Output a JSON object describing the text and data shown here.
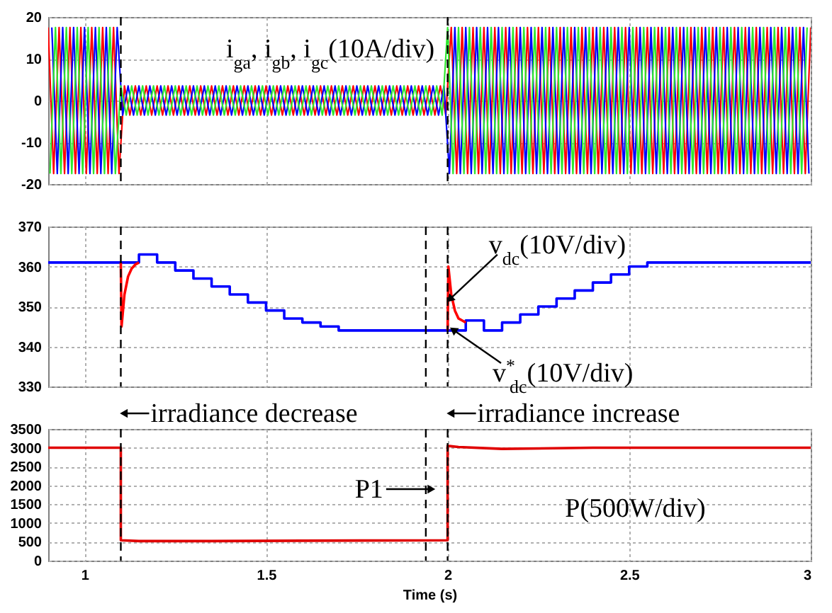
{
  "chart_data": [
    {
      "type": "line",
      "xlim": [
        0.9,
        3
      ],
      "xticks": [
        1,
        1.5,
        2,
        2.5,
        3
      ],
      "ylim": [
        -20,
        20
      ],
      "yticks": [
        -20,
        -10,
        0,
        10,
        20
      ],
      "grid": true,
      "tick_labels": "y",
      "annotations": [
        "i$_{ga}$, i$_{gb}$, i$_{gc}$(10A/div)"
      ],
      "ref_lines": [
        {
          "axis": "x",
          "value": 1.1,
          "line_style": "dashed"
        },
        {
          "axis": "x",
          "value": 2.0,
          "line_style": "dashed"
        }
      ],
      "series": [
        {
          "color": "#ff0000",
          "x": [
            0.9,
            0.915,
            0.93,
            0.945,
            0.96,
            0.975,
            0.99,
            1.005,
            1.02,
            1.035,
            1.05,
            1.065,
            1.08,
            1.095,
            1.11,
            1.125,
            1.14,
            1.155,
            1.17,
            1.185,
            1.2,
            1.215,
            1.23,
            1.245,
            1.26,
            1.275,
            1.29,
            1.305,
            1.32,
            1.335,
            1.35,
            1.365,
            1.38,
            1.395,
            1.41,
            1.425,
            1.44,
            1.455,
            1.47,
            1.485,
            1.5,
            1.515,
            1.53,
            1.545,
            1.56,
            1.575,
            1.59,
            1.605,
            1.62,
            1.635,
            1.65,
            1.665,
            1.68,
            1.695,
            1.71,
            1.725,
            1.74,
            1.755,
            1.77,
            1.785,
            1.8,
            1.815,
            1.83,
            1.845,
            1.86,
            1.875,
            1.89,
            1.905,
            1.92,
            1.935,
            1.95,
            1.965,
            1.98,
            1.995,
            2.01,
            2.025,
            2.04,
            2.055,
            2.07,
            2.085,
            2.1,
            2.115,
            2.13,
            2.145,
            2.16,
            2.175,
            2.19,
            2.205,
            2.22,
            2.235,
            2.25,
            2.265,
            2.28,
            2.295,
            2.31,
            2.325,
            2.34,
            2.355,
            2.37,
            2.385,
            2.4,
            2.415,
            2.43,
            2.445,
            2.46,
            2.475,
            2.49,
            2.505,
            2.52,
            2.535,
            2.55,
            2.565,
            2.58,
            2.595,
            2.61,
            2.625,
            2.64,
            2.655,
            2.67,
            2.685,
            2.7,
            2.715,
            2.73,
            2.745,
            2.76,
            2.775,
            2.79,
            2.805,
            2.82,
            2.835,
            2.85,
            2.865,
            2.88,
            2.895,
            2.91,
            2.925,
            2.94,
            2.955,
            2.97,
            2.985,
            3.0
          ],
          "values": [
            17.5,
            -17.5,
            17.5,
            -17.5,
            17.5,
            -17.5,
            17.5,
            -17.5,
            17.5,
            -17.5,
            17.5,
            -17.5,
            17.5,
            -17.5,
            3.5,
            -3.5,
            3.5,
            -3.5,
            3.5,
            -3.5,
            3.5,
            -3.5,
            3.5,
            -3.5,
            3.5,
            -3.5,
            3.5,
            -3.5,
            3.5,
            -3.5,
            3.5,
            -3.5,
            3.5,
            -3.5,
            3.5,
            -3.5,
            3.5,
            -3.5,
            3.5,
            -3.5,
            3.5,
            -3.5,
            3.5,
            -3.5,
            3.5,
            -3.5,
            3.5,
            -3.5,
            3.5,
            -3.5,
            3.5,
            -3.5,
            3.5,
            -3.5,
            3.5,
            -3.5,
            3.5,
            -3.5,
            3.5,
            -3.5,
            3.5,
            -3.5,
            3.5,
            -3.5,
            3.5,
            -3.5,
            3.5,
            -3.5,
            3.5,
            -3.5,
            3.5,
            -3.5,
            3.5,
            -3.5,
            17.5,
            -17.5,
            17.5,
            -17.5,
            17.5,
            -17.5,
            17.5,
            -17.5,
            17.5,
            -17.5,
            17.5,
            -17.5,
            17.5,
            -17.5,
            17.5,
            -17.5,
            17.5,
            -17.5,
            17.5,
            -17.5,
            17.5,
            -17.5,
            17.5,
            -17.5,
            17.5,
            -17.5,
            17.5,
            -17.5,
            17.5,
            -17.5,
            17.5,
            -17.5,
            17.5,
            -17.5,
            17.5,
            -17.5,
            17.5,
            -17.5,
            17.5,
            -17.5,
            17.5,
            -17.5,
            17.5,
            -17.5,
            17.5,
            -17.5,
            17.5,
            -17.5,
            17.5,
            -17.5,
            17.5,
            -17.5,
            17.5,
            -17.5,
            17.5,
            -17.5,
            17.5,
            -17.5,
            17.5,
            -17.5,
            17.5,
            -17.5,
            17.5,
            -17.5,
            17.5,
            -17.5,
            17.5
          ]
        },
        {
          "color": "#0000ff",
          "x": [
            0.91,
            0.925,
            0.94,
            0.955,
            0.97,
            0.985,
            1.0,
            1.015,
            1.03,
            1.045,
            1.06,
            1.075,
            1.09,
            1.105,
            1.12,
            1.135,
            1.15,
            1.165,
            1.18,
            1.195,
            1.21,
            1.225,
            1.24,
            1.255,
            1.27,
            1.285,
            1.3,
            1.315,
            1.33,
            1.345,
            1.36,
            1.375,
            1.39,
            1.405,
            1.42,
            1.435,
            1.45,
            1.465,
            1.48,
            1.495,
            1.51,
            1.525,
            1.54,
            1.555,
            1.57,
            1.585,
            1.6,
            1.615,
            1.63,
            1.645,
            1.66,
            1.675,
            1.69,
            1.705,
            1.72,
            1.735,
            1.75,
            1.765,
            1.78,
            1.795,
            1.81,
            1.825,
            1.84,
            1.855,
            1.87,
            1.885,
            1.9,
            1.915,
            1.93,
            1.945,
            1.96,
            1.975,
            1.99,
            2.005,
            2.02,
            2.035,
            2.05,
            2.065,
            2.08,
            2.095,
            2.11,
            2.125,
            2.14,
            2.155,
            2.17,
            2.185,
            2.2,
            2.215,
            2.23,
            2.245,
            2.26,
            2.275,
            2.29,
            2.305,
            2.32,
            2.335,
            2.35,
            2.365,
            2.38,
            2.395,
            2.41,
            2.425,
            2.44,
            2.455,
            2.47,
            2.485,
            2.5,
            2.515,
            2.53,
            2.545,
            2.56,
            2.575,
            2.59,
            2.605,
            2.62,
            2.635,
            2.65,
            2.665,
            2.68,
            2.695,
            2.71,
            2.725,
            2.74,
            2.755,
            2.77,
            2.785,
            2.8,
            2.815,
            2.83,
            2.845,
            2.86,
            2.875,
            2.89,
            2.905,
            2.92,
            2.935,
            2.95,
            2.965,
            2.98,
            2.995
          ],
          "values": [
            17.5,
            -17.5,
            17.5,
            -17.5,
            17.5,
            -17.5,
            17.5,
            -17.5,
            17.5,
            -17.5,
            17.5,
            -17.5,
            17.5,
            -3.5,
            3.5,
            -3.5,
            3.5,
            -3.5,
            3.5,
            -3.5,
            3.5,
            -3.5,
            3.5,
            -3.5,
            3.5,
            -3.5,
            3.5,
            -3.5,
            3.5,
            -3.5,
            3.5,
            -3.5,
            3.5,
            -3.5,
            3.5,
            -3.5,
            3.5,
            -3.5,
            3.5,
            -3.5,
            3.5,
            -3.5,
            3.5,
            -3.5,
            3.5,
            -3.5,
            3.5,
            -3.5,
            3.5,
            -3.5,
            3.5,
            -3.5,
            3.5,
            -3.5,
            3.5,
            -3.5,
            3.5,
            -3.5,
            3.5,
            -3.5,
            3.5,
            -3.5,
            3.5,
            -3.5,
            3.5,
            -3.5,
            3.5,
            -3.5,
            3.5,
            -3.5,
            3.5,
            -3.5,
            3.5,
            -17.5,
            17.5,
            -17.5,
            17.5,
            -17.5,
            17.5,
            -17.5,
            17.5,
            -17.5,
            17.5,
            -17.5,
            17.5,
            -17.5,
            17.5,
            -17.5,
            17.5,
            -17.5,
            17.5,
            -17.5,
            17.5,
            -17.5,
            17.5,
            -17.5,
            17.5,
            -17.5,
            17.5,
            -17.5,
            17.5,
            -17.5,
            17.5,
            -17.5,
            17.5,
            -17.5,
            17.5,
            -17.5,
            17.5,
            -17.5,
            17.5,
            -17.5,
            17.5,
            -17.5,
            17.5,
            -17.5,
            17.5,
            -17.5,
            17.5,
            -17.5,
            17.5,
            -17.5,
            17.5,
            -17.5,
            17.5,
            -17.5,
            17.5,
            -17.5,
            17.5,
            -17.5,
            17.5,
            -17.5,
            17.5,
            -17.5,
            17.5,
            -17.5,
            17.5,
            -17.5,
            17.5,
            -17.5
          ]
        },
        {
          "color": "#2ee82e",
          "x": [
            0.905,
            0.92,
            0.935,
            0.95,
            0.965,
            0.98,
            0.995,
            1.01,
            1.025,
            1.04,
            1.055,
            1.07,
            1.085,
            1.1,
            1.115,
            1.13,
            1.145,
            1.16,
            1.175,
            1.19,
            1.205,
            1.22,
            1.235,
            1.25,
            1.265,
            1.28,
            1.295,
            1.31,
            1.325,
            1.34,
            1.355,
            1.37,
            1.385,
            1.4,
            1.415,
            1.43,
            1.445,
            1.46,
            1.475,
            1.49,
            1.505,
            1.52,
            1.535,
            1.55,
            1.565,
            1.58,
            1.595,
            1.61,
            1.625,
            1.64,
            1.655,
            1.67,
            1.685,
            1.7,
            1.715,
            1.73,
            1.745,
            1.76,
            1.775,
            1.79,
            1.805,
            1.82,
            1.835,
            1.85,
            1.865,
            1.88,
            1.895,
            1.91,
            1.925,
            1.94,
            1.955,
            1.97,
            1.985,
            2.0,
            2.015,
            2.03,
            2.045,
            2.06,
            2.075,
            2.09,
            2.105,
            2.12,
            2.135,
            2.15,
            2.165,
            2.18,
            2.195,
            2.21,
            2.225,
            2.24,
            2.255,
            2.27,
            2.285,
            2.3,
            2.315,
            2.33,
            2.345,
            2.36,
            2.375,
            2.39,
            2.405,
            2.42,
            2.435,
            2.45,
            2.465,
            2.48,
            2.495,
            2.51,
            2.525,
            2.54,
            2.555,
            2.57,
            2.585,
            2.6,
            2.615,
            2.63,
            2.645,
            2.66,
            2.675,
            2.69,
            2.705,
            2.72,
            2.735,
            2.75,
            2.765,
            2.78,
            2.795,
            2.81,
            2.825,
            2.84,
            2.855,
            2.87,
            2.885,
            2.9,
            2.915,
            2.93,
            2.945,
            2.96,
            2.975,
            2.99
          ],
          "values": [
            -17.5,
            17.5,
            -17.5,
            17.5,
            -17.5,
            17.5,
            -17.5,
            17.5,
            -17.5,
            17.5,
            -17.5,
            17.5,
            -17.5,
            3.5,
            -3.5,
            3.5,
            -3.5,
            3.5,
            -3.5,
            3.5,
            -3.5,
            3.5,
            -3.5,
            3.5,
            -3.5,
            3.5,
            -3.5,
            3.5,
            -3.5,
            3.5,
            -3.5,
            3.5,
            -3.5,
            3.5,
            -3.5,
            3.5,
            -3.5,
            3.5,
            -3.5,
            3.5,
            -3.5,
            3.5,
            -3.5,
            3.5,
            -3.5,
            3.5,
            -3.5,
            3.5,
            -3.5,
            3.5,
            -3.5,
            3.5,
            -3.5,
            3.5,
            -3.5,
            3.5,
            -3.5,
            3.5,
            -3.5,
            3.5,
            -3.5,
            3.5,
            -3.5,
            3.5,
            -3.5,
            3.5,
            -3.5,
            3.5,
            -3.5,
            3.5,
            -3.5,
            3.5,
            -3.5,
            17.5,
            -17.5,
            17.5,
            -17.5,
            17.5,
            -17.5,
            17.5,
            -17.5,
            17.5,
            -17.5,
            17.5,
            -17.5,
            17.5,
            -17.5,
            17.5,
            -17.5,
            17.5,
            -17.5,
            17.5,
            -17.5,
            17.5,
            -17.5,
            17.5,
            -17.5,
            17.5,
            -17.5,
            17.5,
            -17.5,
            17.5,
            -17.5,
            17.5,
            -17.5,
            17.5,
            -17.5,
            17.5,
            -17.5,
            17.5,
            -17.5,
            17.5,
            -17.5,
            17.5,
            -17.5,
            17.5,
            -17.5,
            17.5,
            -17.5,
            17.5,
            -17.5,
            17.5,
            -17.5,
            17.5,
            -17.5,
            17.5,
            -17.5,
            17.5,
            -17.5,
            17.5,
            -17.5,
            17.5,
            -17.5,
            17.5,
            -17.5,
            17.5,
            -17.5,
            17.5,
            -17.5,
            17.5
          ]
        }
      ]
    },
    {
      "type": "line",
      "xlim": [
        0.9,
        3
      ],
      "xticks": [
        1,
        1.5,
        2,
        2.5,
        3
      ],
      "ylim": [
        330,
        370
      ],
      "yticks": [
        330,
        340,
        350,
        360,
        370
      ],
      "grid": true,
      "tick_labels": "y",
      "annotations": [
        {
          "text": "v$_{dc}$(10V/div)",
          "x": 2.02,
          "y": 352
        },
        {
          "text": "v$^{*}$$_{dc}$(10V/div)",
          "x": 2.03,
          "y": 344
        }
      ],
      "ref_lines": [
        {
          "axis": "x",
          "value": 1.1,
          "line_style": "dashed"
        },
        {
          "axis": "x",
          "value": 2.0,
          "line_style": "dashed"
        },
        {
          "axis": "x",
          "value": 1.94,
          "line_style": "dashed"
        }
      ],
      "series": [
        {
          "type": "step",
          "color": "#0000ff",
          "x": [
            0.9,
            1.15,
            1.2,
            1.25,
            1.3,
            1.35,
            1.4,
            1.45,
            1.5,
            1.55,
            1.6,
            1.65,
            1.7,
            2.05,
            2.1,
            2.15,
            2.2,
            2.25,
            2.3,
            2.35,
            2.4,
            2.45,
            2.5,
            2.55,
            3
          ],
          "values": [
            361,
            363,
            361,
            359,
            357,
            355,
            353,
            351,
            349,
            347,
            346,
            345,
            344,
            346.5,
            344,
            346,
            348,
            350,
            352,
            354,
            356,
            358,
            360,
            361,
            361
          ]
        },
        {
          "color": "#ff0000",
          "x": [
            1.1,
            1.102,
            1.11,
            1.12,
            1.13,
            1.14,
            1.15,
            1.6,
            2.0,
            2.002,
            2.01,
            2.02,
            2.03,
            2.04,
            2.05
          ],
          "values": [
            361,
            345,
            353,
            357.5,
            359.5,
            360.5,
            361,
            null,
            344,
            360,
            353,
            349,
            347,
            346.5,
            346
          ]
        }
      ]
    },
    {
      "type": "line",
      "xlim": [
        0.9,
        3
      ],
      "xticks": [
        {
          "value": 1,
          "label": "1"
        },
        1.5,
        {
          "value": 2,
          "label": "2"
        },
        2.5,
        {
          "value": 3,
          "label": "3"
        }
      ],
      "ylim": [
        0,
        3500
      ],
      "yticks": [
        0,
        500,
        1000,
        1500,
        2000,
        2500,
        3000,
        3500
      ],
      "grid": true,
      "xlabel": "Time (s)",
      "annotations": [
        {
          "text": "P1",
          "x": 1.94,
          "y": 1900
        },
        "P(500W/div)"
      ],
      "ref_lines": [
        {
          "axis": "x",
          "value": 1.1,
          "line_style": "dashed",
          "label": "irradiance decrease"
        },
        {
          "axis": "x",
          "value": 2.0,
          "line_style": "dashed",
          "label": "irradiance increase"
        },
        {
          "axis": "x",
          "value": 1.94,
          "line_style": "dashed"
        }
      ],
      "series": [
        {
          "color": "#e00000",
          "x": [
            0.9,
            1.1,
            1.1,
            1.15,
            1.35,
            1.6,
            2.0,
            2.0,
            2.03,
            2.15,
            2.4,
            3
          ],
          "values": [
            3000,
            3000,
            540,
            520,
            520,
            530,
            540,
            3050,
            3020,
            2970,
            3000,
            3000
          ]
        }
      ]
    }
  ]
}
